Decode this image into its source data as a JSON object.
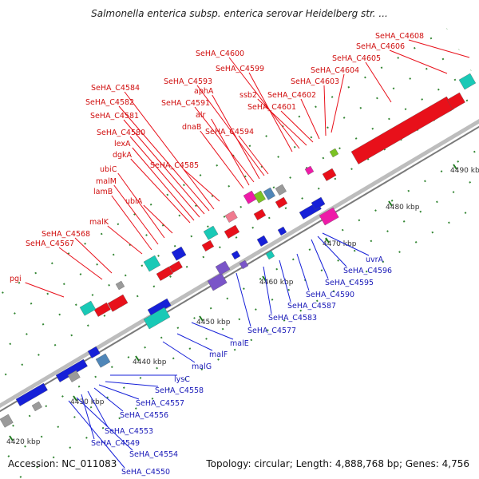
{
  "header": {
    "title": "Salmonella enterica subsp. enterica serovar Heidelberg str. ..."
  },
  "footer": {
    "accession": "Accession: NC_011083",
    "summary": "Topology: circular; Length: 4,888,768 bp; Genes: 4,756"
  },
  "colors": {
    "forward": "#e8101a",
    "reverse": "#1620d8",
    "backbone": "#a9a9a9",
    "tick": "#1f7a1f"
  },
  "ticks": [
    "4420 kbp",
    "4430 kbp",
    "4440 kbp",
    "4450 kbp",
    "4460 kbp",
    "4470 kbp",
    "4480 kbp",
    "4490 kbp"
  ],
  "labels_forward": [
    "pgi",
    "SeHA_C4567",
    "SeHA_C4568",
    "malK",
    "lamB",
    "malM",
    "ubiC",
    "ubiA",
    "dgkA",
    "lexA",
    "SeHA_C4580",
    "SeHA_C4581",
    "SeHA_C4582",
    "SeHA_C4584",
    "SeHA_C4585",
    "dnaB",
    "alr",
    "SeHA_C4591",
    "aphA",
    "SeHA_C4593",
    "SeHA_C4594",
    "SeHA_C4599",
    "SeHA_C4600",
    "ssb2",
    "SeHA_C4601",
    "SeHA_C4602",
    "SeHA_C4603",
    "SeHA_C4604",
    "SeHA_C4605",
    "SeHA_C4606",
    "SeHA_C4608"
  ],
  "labels_reverse": [
    "uvrA",
    "SeHA_C4596",
    "SeHA_C4595",
    "SeHA_C4590",
    "SeHA_C4587",
    "SeHA_C4583",
    "SeHA_C4577",
    "malE",
    "malF",
    "malG",
    "lysC",
    "SeHA_C4558",
    "SeHA_C4557",
    "SeHA_C4556",
    "SeHA_C4553",
    "SeHA_C4549",
    "SeHA_C4554",
    "SeHA_C4550"
  ]
}
